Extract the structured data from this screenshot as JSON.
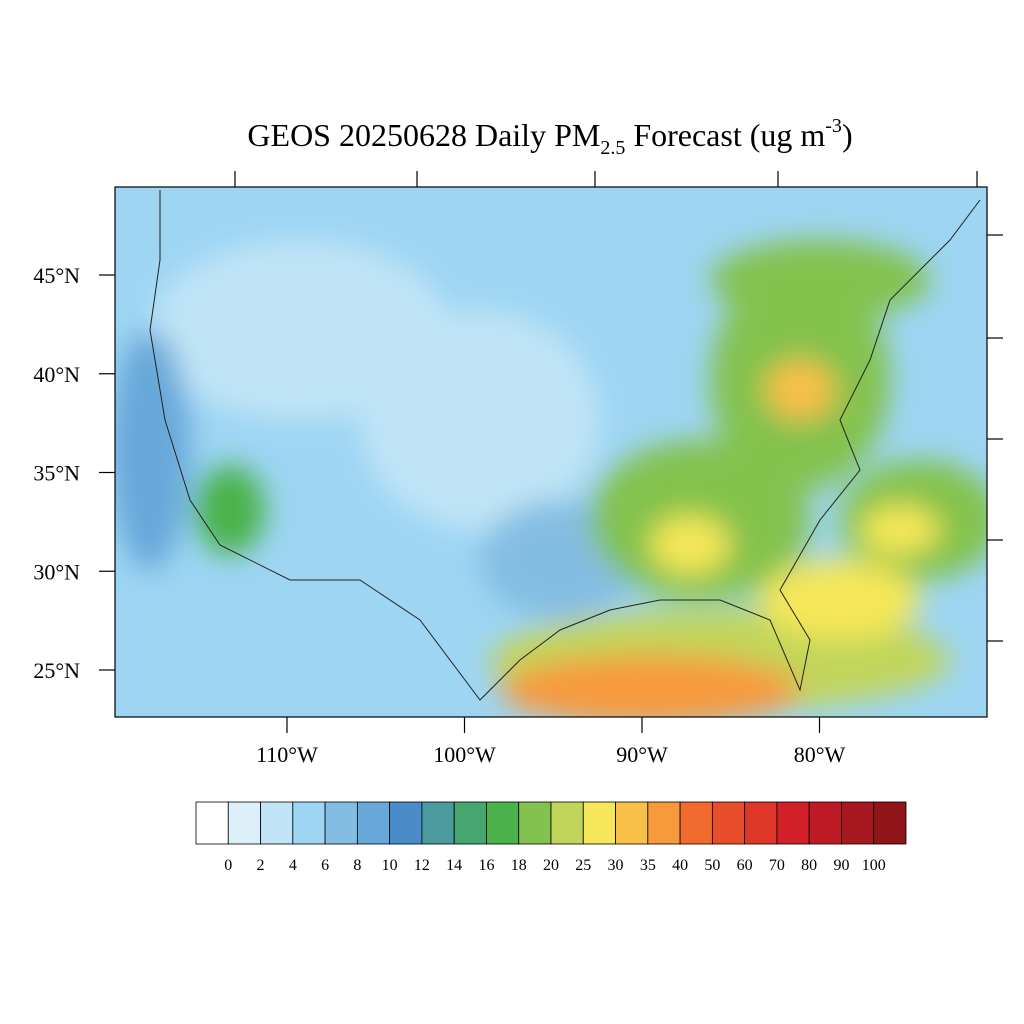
{
  "title": {
    "parts": [
      "GEOS 20250628 Daily PM",
      "2.5",
      " Forecast (ug m",
      "-3",
      ")"
    ]
  },
  "map": {
    "lat_ticks": [
      {
        "value": 45,
        "label": "45°N"
      },
      {
        "value": 40,
        "label": "40°N"
      },
      {
        "value": 35,
        "label": "35°N"
      },
      {
        "value": 30,
        "label": "30°N"
      },
      {
        "value": 25,
        "label": "25°N"
      }
    ],
    "lon_ticks": [
      {
        "value": -110,
        "label": "110°W"
      },
      {
        "value": -100,
        "label": "100°W"
      },
      {
        "value": -90,
        "label": "90°W"
      },
      {
        "value": -80,
        "label": "80°W"
      }
    ]
  },
  "colorbar": {
    "levels": [
      0,
      2,
      4,
      6,
      8,
      10,
      12,
      14,
      16,
      18,
      20,
      25,
      30,
      35,
      40,
      50,
      60,
      70,
      80,
      90,
      100
    ],
    "colors": [
      "#ffffff",
      "#ddf0fa",
      "#c0e4f6",
      "#9dd5f3",
      "#84bde3",
      "#67a7d9",
      "#4a8bc9",
      "#4a9a9e",
      "#45a66f",
      "#4ab24a",
      "#83c24e",
      "#c1d55a",
      "#f5e759",
      "#f8c049",
      "#f79a3c",
      "#f26b2e",
      "#e84e2a",
      "#de3628",
      "#d31f28",
      "#bd1a26",
      "#a6171f",
      "#8f1518"
    ]
  }
}
